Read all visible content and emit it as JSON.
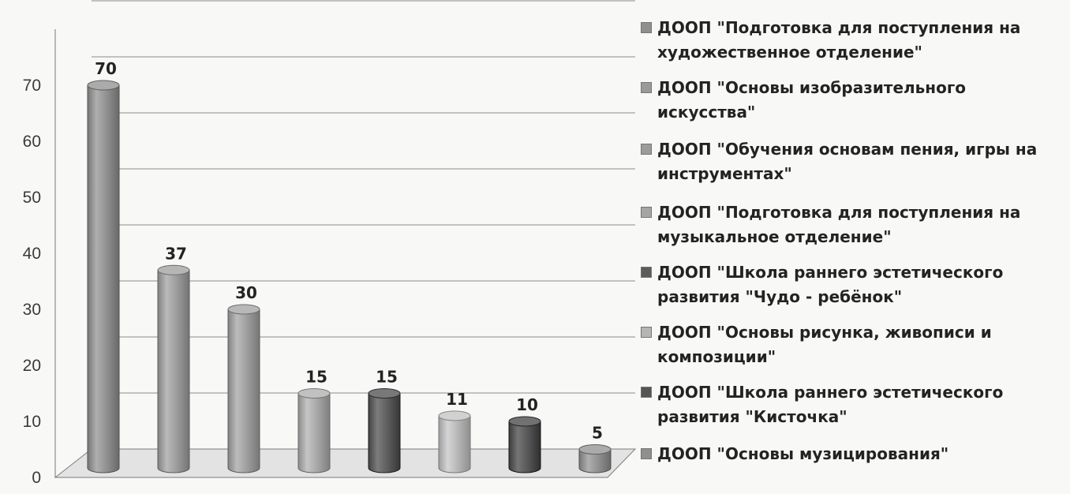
{
  "chart_data": {
    "type": "bar",
    "categories": [
      "ДООП \"Подготовка для поступления на\nхудожественное отделение\"",
      "ДООП \"Основы изобразительного искусства\"",
      "ДООП \"Обучения основам пения, игры на\nинструментах\"",
      "ДООП \"Подготовка для поступления на\nмузыкальное отделение\"",
      "ДООП \"Школа раннего эстетического\nразвития \"Чудо - ребёнок\"",
      "ДООП \"Основы рисунка, живописи и\nкомпозиции\"",
      "ДООП \"Школа раннего эстетического\nразвития \"Кисточка\"",
      "ДООП \"Основы музицирования\""
    ],
    "values": [
      70,
      37,
      30,
      15,
      15,
      11,
      10,
      5
    ],
    "value_labels": [
      "70",
      "37",
      "30",
      "15",
      "15",
      "11",
      "10",
      "5"
    ],
    "y_tick_labels": [
      "0",
      "10",
      "20",
      "30",
      "40",
      "50",
      "60",
      "70"
    ],
    "ylim": [
      0,
      80
    ],
    "grid": true,
    "legend_position": "right",
    "style": "3d-cylinder",
    "colors": [
      "#8f8f8f",
      "#9a9a9a",
      "#9c9c9c",
      "#a5a5a5",
      "#5c5c5c",
      "#b5b5b5",
      "#555555",
      "#8f8f8f"
    ],
    "title": "",
    "xlabel": "",
    "ylabel": ""
  }
}
